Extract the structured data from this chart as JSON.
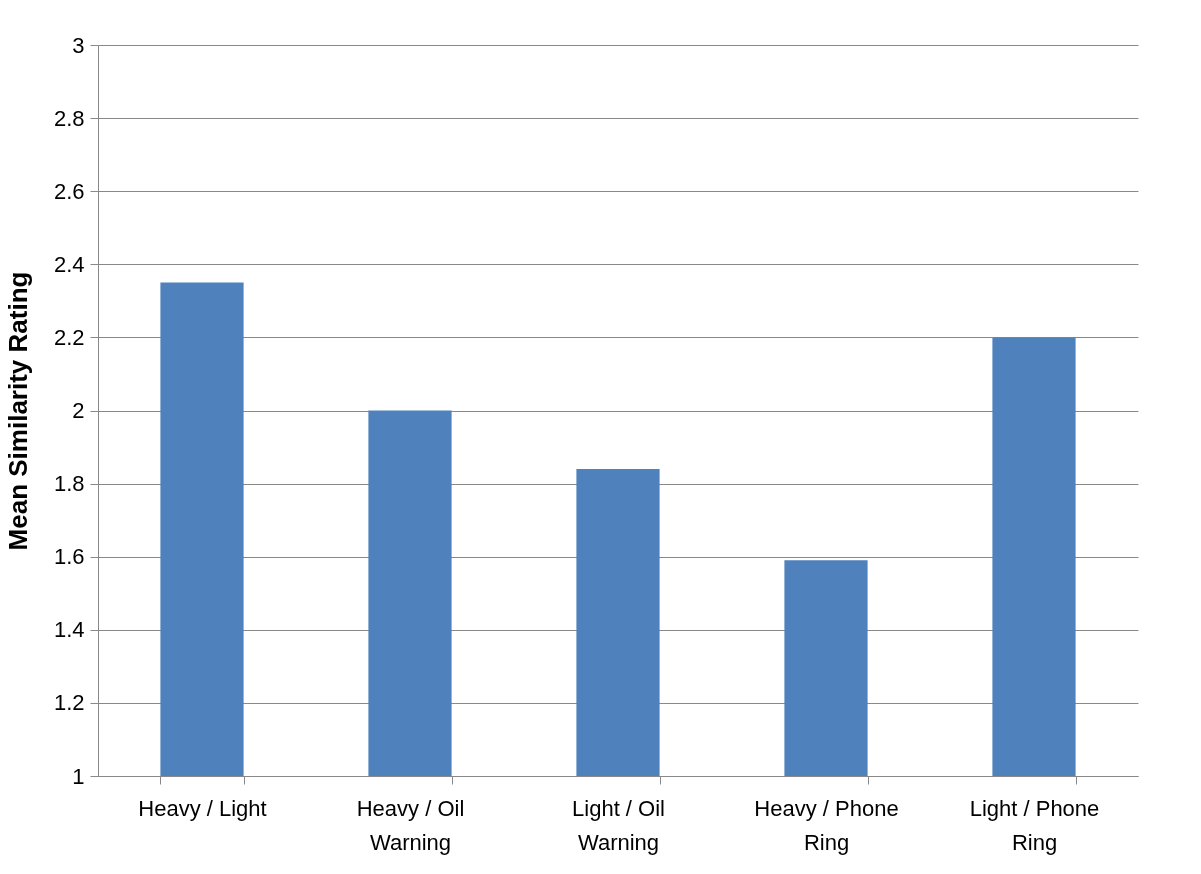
{
  "chart_data": {
    "type": "bar",
    "ylabel": "Mean Similarity Rating",
    "categories": [
      "Heavy / Light",
      "Heavy / Oil Warning",
      "Light / Oil Warning",
      "Heavy / Phone Ring",
      "Light / Phone Ring"
    ],
    "values": [
      2.35,
      2.0,
      1.84,
      1.59,
      2.2
    ],
    "color": "#4f81bd",
    "ylim": [
      1,
      3
    ],
    "yticks": [
      1,
      1.2,
      1.4,
      1.6,
      1.8,
      2,
      2.2,
      2.4,
      2.6,
      2.8,
      3
    ],
    "grid": "y"
  }
}
